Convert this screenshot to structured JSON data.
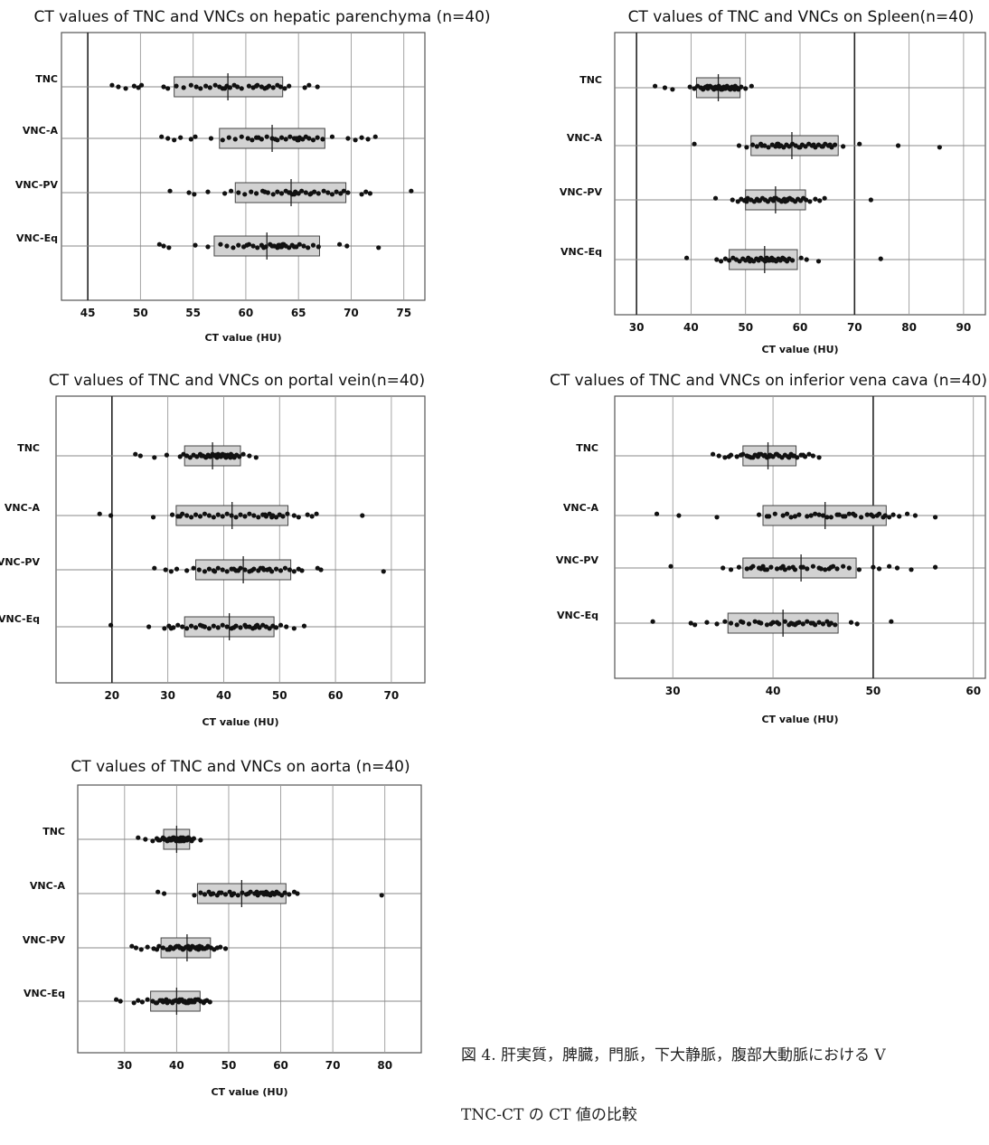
{
  "figure_caption": [
    "図 4. 肝実質，脾臓，門脈，下大静脈，腹部大動脈における V",
    "TNC-CT の CT 値の比較"
  ],
  "chart_data": [
    {
      "type": "box",
      "title": "CT values of TNC and VNCs on hepatic parenchyma (n=40)",
      "xlabel": "CT value (HU)",
      "xlim": [
        42.5,
        77
      ],
      "xticks": [
        45,
        50,
        55,
        60,
        65,
        70,
        75
      ],
      "major_gridlines": [
        45
      ],
      "categories": [
        "TNC",
        "VNC-A",
        "VNC-PV",
        "VNC-Eq"
      ],
      "boxes": [
        {
          "label": "TNC",
          "q1": 53.2,
          "median": 58.3,
          "q3": 63.5,
          "points": [
            47.3,
            47.9,
            48.6,
            49.4,
            49.8,
            50.1,
            52.2,
            52.6,
            53.4,
            54.1,
            54.8,
            55.3,
            55.7,
            56.2,
            56.6,
            57.1,
            57.5,
            57.8,
            58.2,
            58.5,
            58.9,
            59.2,
            59.6,
            60.3,
            60.7,
            61.1,
            61.5,
            61.8,
            62.2,
            62.6,
            63.0,
            63.3,
            63.7,
            64.1,
            65.6,
            66.0,
            66.8,
            58.0,
            61.0,
            62.0
          ]
        },
        {
          "label": "VNC-A",
          "q1": 57.5,
          "median": 62.5,
          "q3": 67.5,
          "points": [
            52.0,
            52.6,
            53.2,
            53.8,
            54.8,
            55.2,
            56.7,
            57.8,
            58.4,
            59.0,
            59.6,
            60.2,
            60.6,
            61.0,
            61.5,
            62.0,
            62.5,
            63.0,
            63.4,
            63.8,
            64.2,
            64.6,
            64.9,
            65.1,
            65.4,
            65.7,
            66.0,
            66.4,
            66.8,
            67.3,
            68.2,
            69.7,
            70.4,
            71.0,
            71.6,
            72.3,
            64.8,
            65.0,
            61.2,
            62.8
          ]
        },
        {
          "label": "VNC-PV",
          "q1": 59.0,
          "median": 64.3,
          "q3": 69.5,
          "points": [
            52.8,
            54.6,
            55.1,
            56.4,
            58.0,
            58.6,
            59.3,
            59.9,
            60.5,
            61.0,
            61.6,
            62.1,
            62.6,
            63.0,
            63.4,
            63.8,
            64.1,
            64.4,
            64.7,
            65.0,
            65.3,
            65.7,
            66.1,
            66.5,
            66.9,
            67.4,
            67.8,
            68.2,
            68.6,
            69.0,
            69.3,
            69.7,
            71.0,
            71.4,
            71.8,
            75.7,
            64.2,
            64.6,
            61.8,
            66.2
          ]
        },
        {
          "label": "VNC-Eq",
          "q1": 57.0,
          "median": 62.0,
          "q3": 67.0,
          "points": [
            51.8,
            52.2,
            52.7,
            55.2,
            56.4,
            57.6,
            58.2,
            58.8,
            59.3,
            59.8,
            60.3,
            60.7,
            61.1,
            61.5,
            61.9,
            62.3,
            62.7,
            63.0,
            63.2,
            63.4,
            63.6,
            63.8,
            64.1,
            64.4,
            64.8,
            65.1,
            65.5,
            65.9,
            66.4,
            66.9,
            68.9,
            69.6,
            72.6,
            63.1,
            63.3,
            63.5,
            62.5,
            61.7,
            60.1,
            64.6
          ]
        }
      ]
    },
    {
      "type": "box",
      "title": "CT values of TNC and VNCs on Spleen(n=40)",
      "xlabel": "CT value (HU)",
      "xlim": [
        26,
        94
      ],
      "xticks": [
        30,
        40,
        50,
        60,
        70,
        80,
        90
      ],
      "major_gridlines": [
        30,
        70
      ],
      "categories": [
        "TNC",
        "VNC-A",
        "VNC-PV",
        "VNC-Eq"
      ],
      "boxes": [
        {
          "label": "TNC",
          "q1": 41.0,
          "median": 45.0,
          "q3": 49.0,
          "points": [
            33.4,
            35.2,
            36.6,
            39.8,
            40.6,
            41.2,
            41.8,
            42.2,
            42.7,
            43.1,
            43.5,
            43.9,
            44.2,
            44.5,
            44.8,
            45.1,
            45.4,
            45.7,
            46.0,
            46.3,
            46.6,
            46.9,
            47.2,
            47.5,
            47.8,
            48.1,
            48.4,
            48.7,
            49.2,
            50.0,
            51.1,
            44.0,
            45.5,
            46.5,
            47.0,
            43.0,
            42.5,
            48.0,
            45.0,
            46.0
          ]
        },
        {
          "label": "VNC-A",
          "q1": 51.0,
          "median": 58.5,
          "q3": 67.0,
          "points": [
            40.6,
            48.8,
            50.2,
            51.3,
            52.1,
            52.8,
            53.5,
            54.2,
            54.9,
            55.5,
            56.0,
            56.5,
            57.0,
            57.5,
            58.0,
            58.6,
            59.2,
            59.8,
            60.4,
            61.0,
            61.6,
            62.2,
            62.8,
            63.4,
            64.0,
            64.6,
            65.2,
            65.8,
            66.4,
            67.9,
            70.9,
            78.0,
            85.6,
            65.5,
            56.2,
            55.8,
            53.0,
            60.0,
            62.5,
            64.2
          ]
        },
        {
          "label": "VNC-PV",
          "q1": 50.0,
          "median": 55.5,
          "q3": 61.0,
          "points": [
            44.5,
            47.6,
            48.6,
            49.2,
            49.8,
            50.4,
            51.0,
            51.6,
            52.1,
            52.6,
            53.1,
            53.6,
            54.1,
            54.6,
            55.1,
            55.6,
            56.1,
            56.6,
            57.1,
            57.6,
            58.1,
            58.6,
            59.1,
            59.6,
            60.1,
            60.6,
            61.1,
            61.8,
            62.8,
            63.6,
            64.5,
            73.0,
            57.3,
            57.8,
            56.8,
            55.3,
            50.0,
            50.2,
            58.3,
            52.4
          ]
        },
        {
          "label": "VNC-Eq",
          "q1": 47.0,
          "median": 53.5,
          "q3": 59.5,
          "points": [
            39.2,
            44.7,
            45.5,
            46.3,
            47.0,
            47.7,
            48.3,
            48.9,
            49.5,
            50.0,
            50.5,
            51.0,
            51.5,
            52.0,
            52.4,
            52.8,
            53.2,
            53.6,
            54.0,
            54.4,
            54.8,
            55.2,
            55.6,
            56.0,
            56.4,
            56.8,
            57.2,
            57.6,
            58.0,
            58.6,
            60.2,
            61.2,
            63.4,
            74.8,
            54.2,
            53.9,
            54.6,
            50.8,
            57.0,
            55.0
          ]
        }
      ]
    },
    {
      "type": "box",
      "title": "CT values of TNC and VNCs on portal vein(n=40)",
      "xlabel": "CT value (HU)",
      "xlim": [
        10,
        76
      ],
      "xticks": [
        20,
        30,
        40,
        50,
        60,
        70
      ],
      "major_gridlines": [
        20
      ],
      "categories": [
        "TNC",
        "VNC-A",
        "VNC-PV",
        "VNC-Eq"
      ],
      "boxes": [
        {
          "label": "TNC",
          "q1": 33.0,
          "median": 38.0,
          "q3": 43.0,
          "points": [
            24.2,
            25.1,
            27.6,
            29.8,
            32.2,
            32.8,
            33.4,
            34.0,
            34.6,
            35.2,
            35.8,
            36.3,
            36.8,
            37.2,
            37.6,
            38.0,
            38.4,
            38.8,
            39.2,
            39.5,
            39.8,
            40.1,
            40.4,
            40.7,
            41.0,
            41.3,
            41.6,
            41.9,
            42.3,
            42.8,
            43.5,
            44.6,
            45.8,
            40.2,
            40.5,
            39.0,
            36.0,
            41.2,
            38.6,
            37.0
          ]
        },
        {
          "label": "VNC-A",
          "q1": 31.5,
          "median": 41.5,
          "q3": 51.5,
          "points": [
            17.8,
            19.8,
            27.4,
            30.8,
            31.8,
            32.6,
            33.4,
            34.2,
            35.0,
            35.8,
            36.6,
            37.4,
            38.2,
            39.0,
            39.8,
            40.6,
            41.4,
            42.2,
            43.0,
            43.8,
            44.6,
            45.4,
            46.2,
            47.0,
            47.6,
            48.2,
            48.8,
            49.4,
            50.0,
            50.6,
            51.4,
            52.6,
            53.4,
            55.0,
            55.8,
            56.6,
            64.8,
            48.6,
            47.4,
            32.2
          ]
        },
        {
          "label": "VNC-PV",
          "q1": 35.0,
          "median": 43.5,
          "q3": 52.0,
          "points": [
            27.6,
            29.6,
            30.6,
            31.6,
            33.4,
            34.6,
            35.6,
            36.6,
            37.4,
            38.2,
            39.0,
            39.8,
            40.6,
            41.4,
            42.2,
            43.0,
            43.8,
            44.6,
            45.4,
            46.2,
            47.0,
            47.8,
            48.6,
            49.4,
            50.2,
            51.0,
            51.8,
            52.6,
            53.4,
            54.0,
            56.8,
            57.4,
            68.6,
            41.8,
            42.6,
            46.6,
            47.2,
            38.4,
            48.2,
            45.0
          ]
        },
        {
          "label": "VNC-Eq",
          "q1": 33.0,
          "median": 41.0,
          "q3": 49.0,
          "points": [
            19.8,
            26.6,
            29.4,
            30.2,
            31.0,
            31.8,
            32.6,
            33.4,
            34.2,
            35.0,
            35.8,
            36.6,
            37.4,
            38.2,
            39.0,
            39.8,
            40.6,
            41.4,
            42.2,
            43.0,
            43.8,
            44.6,
            45.2,
            45.8,
            46.4,
            47.0,
            47.6,
            48.2,
            48.8,
            49.4,
            50.2,
            51.2,
            52.6,
            54.4,
            45.6,
            46.0,
            44.0,
            30.6,
            36.2,
            41.8
          ]
        }
      ]
    },
    {
      "type": "box",
      "title": "CT values of TNC and VNCs on inferior vena cava (n=40)",
      "xlabel": "CT value (HU)",
      "xlim": [
        24.2,
        61.2
      ],
      "xticks": [
        30,
        40,
        50,
        60
      ],
      "major_gridlines": [
        50
      ],
      "categories": [
        "TNC",
        "VNC-A",
        "VNC-PV",
        "VNC-Eq"
      ],
      "boxes": [
        {
          "label": "TNC",
          "q1": 37.0,
          "median": 39.5,
          "q3": 42.3,
          "points": [
            34.0,
            34.6,
            35.2,
            35.8,
            36.4,
            37.0,
            37.4,
            37.8,
            38.2,
            38.5,
            38.8,
            39.1,
            39.4,
            39.7,
            40.0,
            40.3,
            40.6,
            40.9,
            41.2,
            41.5,
            41.8,
            42.1,
            42.4,
            42.8,
            43.2,
            43.6,
            44.0,
            44.6,
            39.2,
            39.6,
            38.6,
            42.0,
            41.6,
            36.8,
            37.6,
            40.4,
            39.8,
            38.0,
            43.0,
            35.6
          ]
        },
        {
          "label": "VNC-A",
          "q1": 39.0,
          "median": 45.2,
          "q3": 51.3,
          "points": [
            28.4,
            30.6,
            34.4,
            38.6,
            39.4,
            40.2,
            41.0,
            41.8,
            42.6,
            43.4,
            44.2,
            45.0,
            45.8,
            46.4,
            47.0,
            47.6,
            48.2,
            48.8,
            49.4,
            50.0,
            50.6,
            51.2,
            51.6,
            52.0,
            52.6,
            53.4,
            54.2,
            56.2,
            46.6,
            47.2,
            48.0,
            50.4,
            51.0,
            49.8,
            39.6,
            41.4,
            43.8,
            45.4,
            44.6,
            42.2
          ]
        },
        {
          "label": "VNC-PV",
          "q1": 37.0,
          "median": 42.8,
          "q3": 48.3,
          "points": [
            29.8,
            35.0,
            35.8,
            36.6,
            37.4,
            38.0,
            38.6,
            39.2,
            39.8,
            40.4,
            41.0,
            41.6,
            42.2,
            42.8,
            43.4,
            44.0,
            44.6,
            45.2,
            45.8,
            46.4,
            47.0,
            47.6,
            48.6,
            50.0,
            50.6,
            51.6,
            52.4,
            53.8,
            56.2,
            38.8,
            39.0,
            40.8,
            41.2,
            43.0,
            44.8,
            46.0,
            37.8,
            39.4,
            42.0,
            45.6
          ]
        },
        {
          "label": "VNC-Eq",
          "q1": 35.5,
          "median": 41.0,
          "q3": 46.5,
          "points": [
            28.0,
            31.8,
            32.2,
            33.4,
            34.4,
            35.2,
            35.8,
            36.4,
            37.0,
            37.6,
            38.2,
            38.8,
            39.4,
            40.0,
            40.6,
            41.2,
            41.8,
            42.2,
            42.6,
            43.0,
            43.4,
            43.8,
            44.2,
            44.6,
            45.0,
            45.4,
            45.8,
            46.2,
            47.8,
            48.4,
            51.8,
            42.4,
            41.6,
            40.4,
            39.8,
            36.8,
            44.0,
            45.6,
            38.6,
            42.0
          ]
        }
      ]
    },
    {
      "type": "box",
      "title": "CT values of TNC and VNCs on aorta (n=40)",
      "xlabel": "CT value (HU)",
      "xlim": [
        21,
        87
      ],
      "xticks": [
        30,
        40,
        50,
        60,
        70,
        80
      ],
      "major_gridlines": [],
      "categories": [
        "TNC",
        "VNC-A",
        "VNC-PV",
        "VNC-Eq"
      ],
      "boxes": [
        {
          "label": "TNC",
          "q1": 37.5,
          "median": 40.0,
          "q3": 42.5,
          "points": [
            32.6,
            34.0,
            35.4,
            36.2,
            36.8,
            37.4,
            37.8,
            38.2,
            38.6,
            39.0,
            39.3,
            39.6,
            39.9,
            40.2,
            40.5,
            40.8,
            41.1,
            41.4,
            41.7,
            42.0,
            42.3,
            42.6,
            42.9,
            43.3,
            44.6,
            39.5,
            40.0,
            40.4,
            39.2,
            38.8,
            41.2,
            41.8,
            40.6,
            39.8,
            38.4,
            42.2,
            37.6,
            40.9,
            41.5,
            36.5
          ]
        },
        {
          "label": "VNC-A",
          "q1": 44.0,
          "median": 52.5,
          "q3": 61.0,
          "points": [
            36.4,
            37.6,
            43.4,
            44.6,
            45.4,
            46.2,
            47.0,
            47.8,
            48.6,
            49.4,
            50.2,
            51.0,
            51.8,
            52.6,
            53.4,
            54.2,
            55.0,
            55.6,
            56.2,
            56.8,
            57.2,
            57.6,
            58.0,
            58.4,
            58.8,
            59.2,
            59.6,
            60.2,
            60.8,
            61.6,
            62.6,
            63.2,
            79.4,
            56.6,
            57.4,
            55.4,
            53.8,
            50.6,
            48.2,
            46.6
          ]
        },
        {
          "label": "VNC-PV",
          "q1": 37.0,
          "median": 42.0,
          "q3": 46.5,
          "points": [
            31.4,
            32.2,
            33.2,
            34.4,
            35.6,
            36.6,
            37.4,
            38.2,
            38.8,
            39.4,
            40.0,
            40.6,
            41.2,
            41.8,
            42.4,
            43.0,
            43.6,
            44.2,
            44.8,
            45.4,
            46.0,
            46.6,
            47.2,
            48.4,
            49.4,
            40.4,
            40.8,
            42.6,
            43.2,
            43.8,
            44.4,
            45.8,
            38.6,
            39.8,
            41.4,
            42.2,
            47.8,
            36.2,
            44.0,
            45.0
          ]
        },
        {
          "label": "VNC-Eq",
          "q1": 35.0,
          "median": 40.0,
          "q3": 44.5,
          "points": [
            28.4,
            29.2,
            31.8,
            32.6,
            33.4,
            34.4,
            35.4,
            36.2,
            36.8,
            37.4,
            38.0,
            38.6,
            39.2,
            39.8,
            40.4,
            41.0,
            41.6,
            42.2,
            42.8,
            43.4,
            44.0,
            44.6,
            45.2,
            45.8,
            46.4,
            40.6,
            41.2,
            41.8,
            42.4,
            43.0,
            43.6,
            39.4,
            38.2,
            37.2,
            42.6,
            44.2,
            45.4,
            36.0,
            40.0,
            41.4
          ]
        }
      ]
    }
  ]
}
